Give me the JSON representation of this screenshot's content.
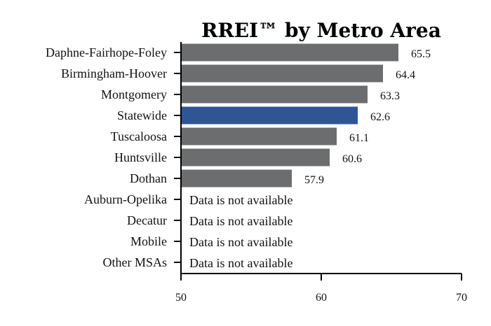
{
  "chart_data": {
    "type": "bar",
    "orientation": "horizontal",
    "title": "RREI™ by Metro Area",
    "xlabel": "",
    "ylabel": "",
    "xlim": [
      50,
      70
    ],
    "xticks": [
      "50",
      "60",
      "70"
    ],
    "categories": [
      "Daphne-Fairhope-Foley",
      "Birmingham-Hoover",
      "Montgomery",
      "Statewide",
      "Tuscaloosa",
      "Huntsville",
      "Dothan",
      "Auburn-Opelika",
      "Decatur",
      "Mobile",
      "Other MSAs"
    ],
    "values": [
      65.5,
      64.4,
      63.3,
      62.6,
      61.1,
      60.6,
      57.9,
      null,
      null,
      null,
      null
    ],
    "value_labels": [
      "65.5",
      "64.4",
      "63.3",
      "62.6",
      "61.1",
      "60.6",
      "57.9",
      "",
      "",
      "",
      ""
    ],
    "missing_label": "Data is not available",
    "bar_color": "#6b6d6e",
    "highlight_category": "Statewide",
    "highlight_color": "#2f5597",
    "grid": false,
    "legend": "none"
  }
}
